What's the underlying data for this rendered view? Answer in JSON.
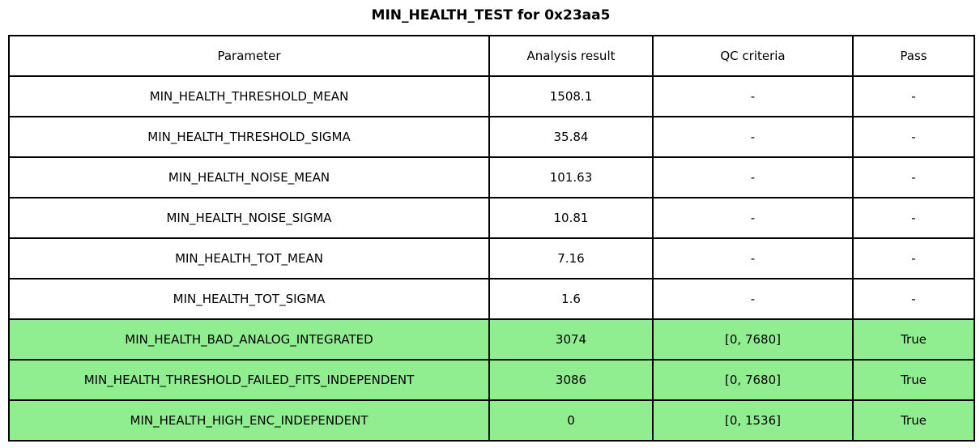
{
  "title": "MIN_HEALTH_TEST for 0x23aa5",
  "colors": {
    "pass_green": "#90EE90",
    "border": "#000000",
    "background": "#ffffff",
    "text": "#000000"
  },
  "chart_data": {
    "type": "table",
    "title": "MIN_HEALTH_TEST for 0x23aa5",
    "columns": [
      "Parameter",
      "Analysis result",
      "QC criteria",
      "Pass"
    ],
    "rows": [
      {
        "parameter": "MIN_HEALTH_THRESHOLD_MEAN",
        "result": "1508.1",
        "qc": "-",
        "pass": "-",
        "highlight": false
      },
      {
        "parameter": "MIN_HEALTH_THRESHOLD_SIGMA",
        "result": "35.84",
        "qc": "-",
        "pass": "-",
        "highlight": false
      },
      {
        "parameter": "MIN_HEALTH_NOISE_MEAN",
        "result": "101.63",
        "qc": "-",
        "pass": "-",
        "highlight": false
      },
      {
        "parameter": "MIN_HEALTH_NOISE_SIGMA",
        "result": "10.81",
        "qc": "-",
        "pass": "-",
        "highlight": false
      },
      {
        "parameter": "MIN_HEALTH_TOT_MEAN",
        "result": "7.16",
        "qc": "-",
        "pass": "-",
        "highlight": false
      },
      {
        "parameter": "MIN_HEALTH_TOT_SIGMA",
        "result": "1.6",
        "qc": "-",
        "pass": "-",
        "highlight": false
      },
      {
        "parameter": "MIN_HEALTH_BAD_ANALOG_INTEGRATED",
        "result": "3074",
        "qc": "[0, 7680]",
        "pass": "True",
        "highlight": true
      },
      {
        "parameter": "MIN_HEALTH_THRESHOLD_FAILED_FITS_INDEPENDENT",
        "result": "3086",
        "qc": "[0, 7680]",
        "pass": "True",
        "highlight": true
      },
      {
        "parameter": "MIN_HEALTH_HIGH_ENC_INDEPENDENT",
        "result": "0",
        "qc": "[0, 1536]",
        "pass": "True",
        "highlight": true
      }
    ]
  }
}
